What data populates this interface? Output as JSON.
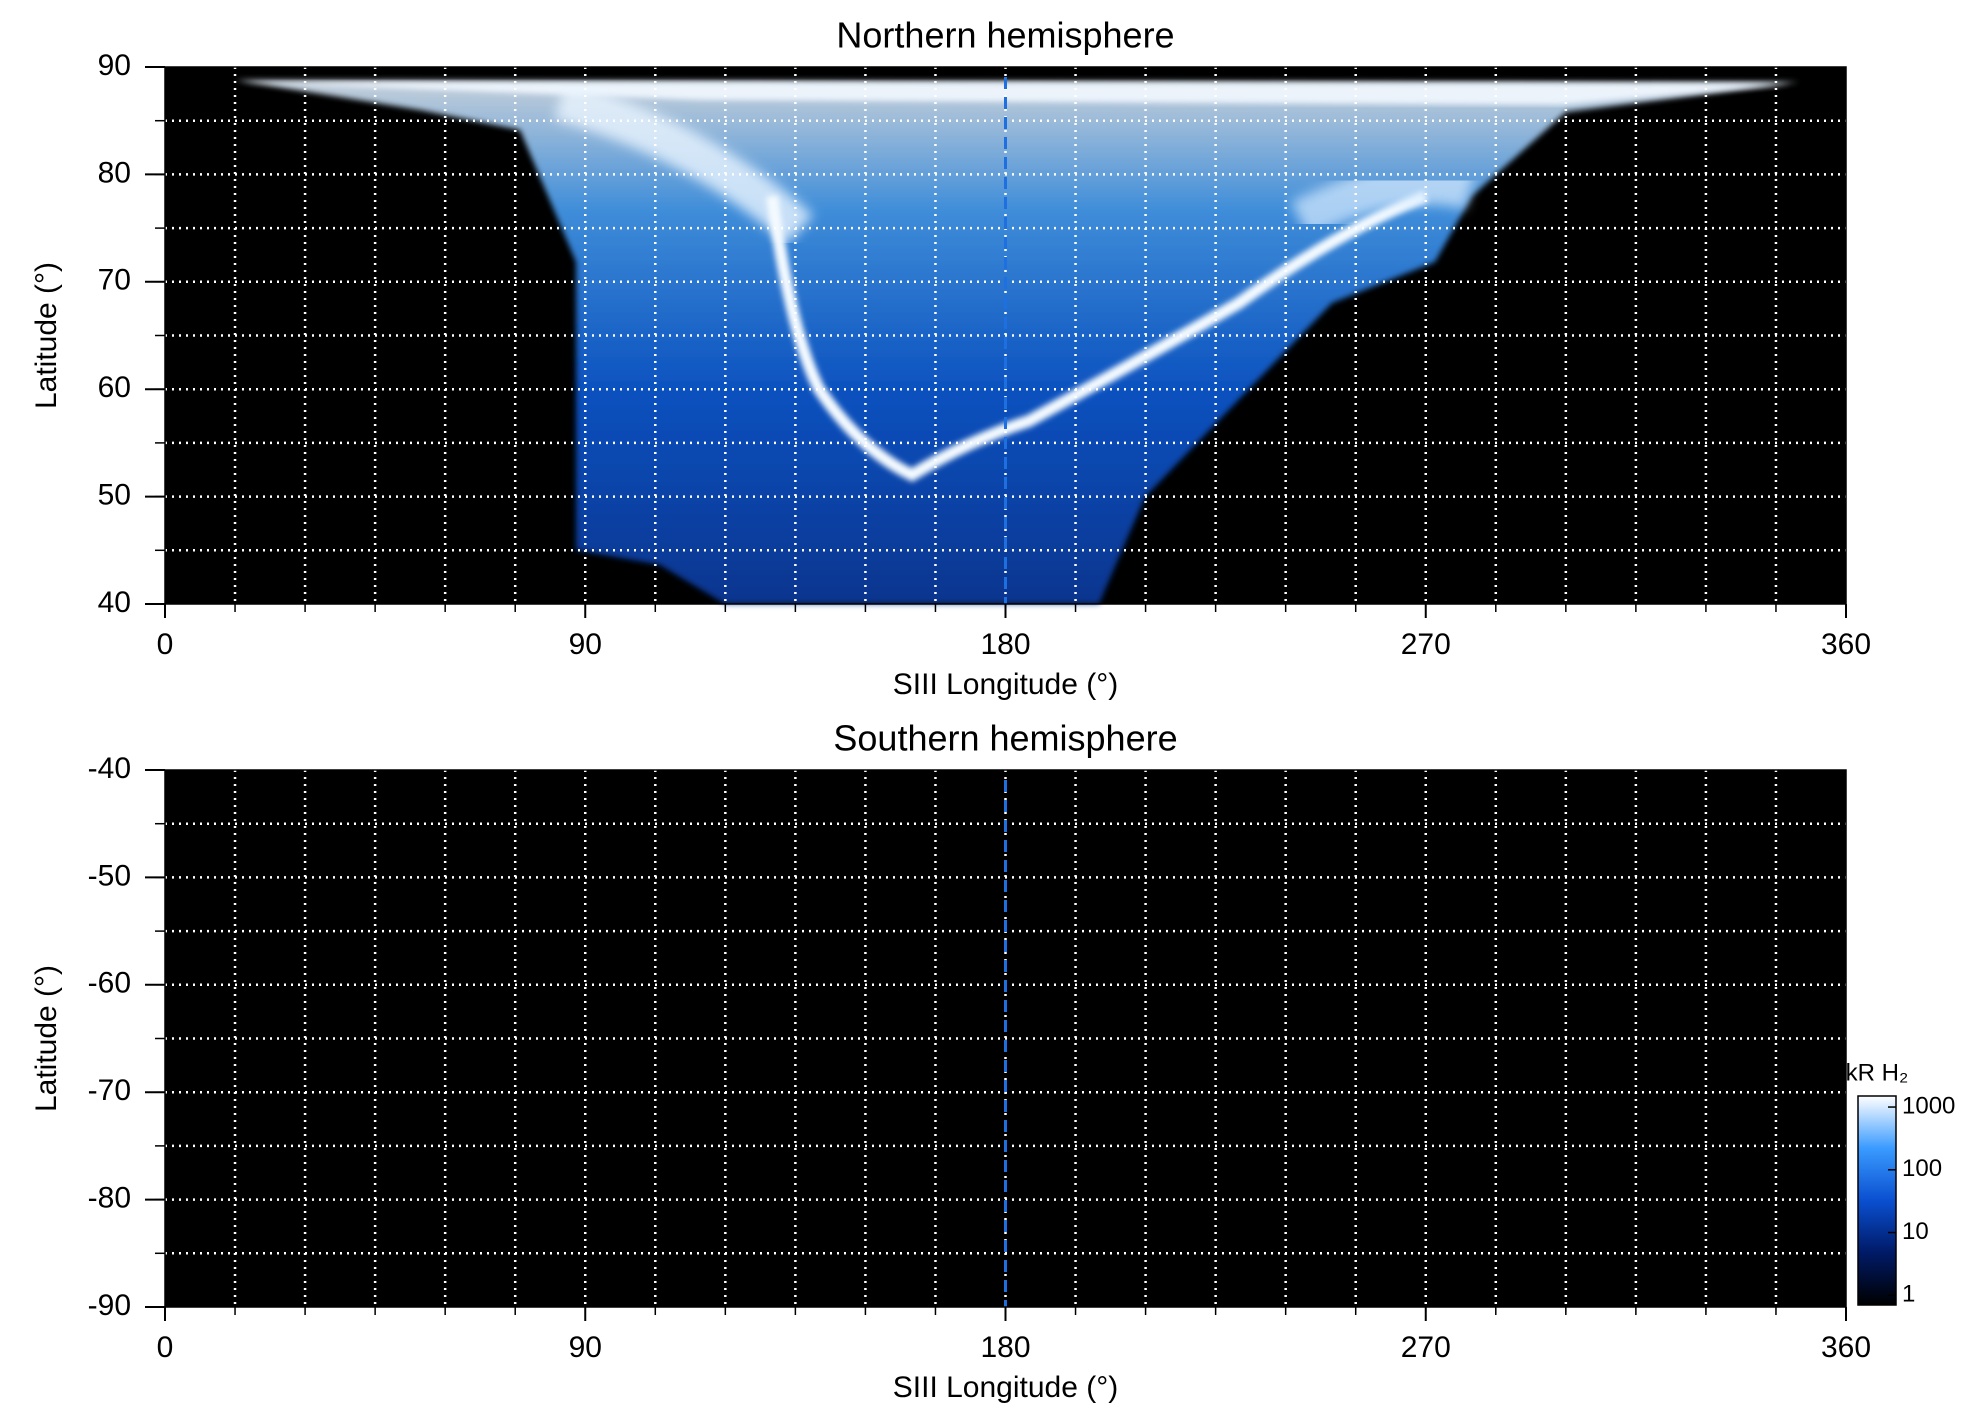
{
  "chart_data": [
    {
      "type": "heatmap",
      "title": "Northern hemisphere",
      "x_label": "SIII Longitude (°)",
      "y_label": "Latitude (°)",
      "xlim": [
        0,
        360
      ],
      "xticks": [
        0,
        90,
        180,
        270,
        360
      ],
      "ylim": [
        40,
        90
      ],
      "yticks": [
        40,
        50,
        60,
        70,
        80,
        90
      ],
      "x_grid": [
        15,
        30,
        45,
        60,
        75,
        90,
        105,
        120,
        135,
        150,
        165,
        180,
        195,
        210,
        225,
        240,
        255,
        270,
        285,
        300,
        315,
        330,
        345
      ],
      "y_grid": [
        45,
        50,
        55,
        60,
        65,
        70,
        75,
        80,
        85
      ],
      "reference_x": 180,
      "reference_color": "#1e6fe0",
      "background": "#000000"
    },
    {
      "type": "heatmap",
      "title": "Southern hemisphere",
      "x_label": "SIII Longitude (°)",
      "y_label": "Latitude (°)",
      "xlim": [
        0,
        360
      ],
      "xticks": [
        0,
        90,
        180,
        270,
        360
      ],
      "ylim": [
        -90,
        -40
      ],
      "yticks": [
        -90,
        -80,
        -70,
        -60,
        -50,
        -40
      ],
      "x_grid": [
        15,
        30,
        45,
        60,
        75,
        90,
        105,
        120,
        135,
        150,
        165,
        180,
        195,
        210,
        225,
        240,
        255,
        270,
        285,
        300,
        315,
        330,
        345
      ],
      "y_grid": [
        -85,
        -80,
        -75,
        -70,
        -65,
        -60,
        -55,
        -50,
        -45
      ],
      "reference_x": 180,
      "reference_color": "#1e6fe0",
      "background": "#000000",
      "colorbar": {
        "label": "kR H₂",
        "log": true,
        "lim": [
          0.7,
          1500
        ],
        "ticks": [
          1,
          10,
          100,
          1000
        ],
        "colors": [
          "#000000",
          "#001a66",
          "#0a4fd0",
          "#3a9bff",
          "#ffffff"
        ]
      }
    }
  ]
}
